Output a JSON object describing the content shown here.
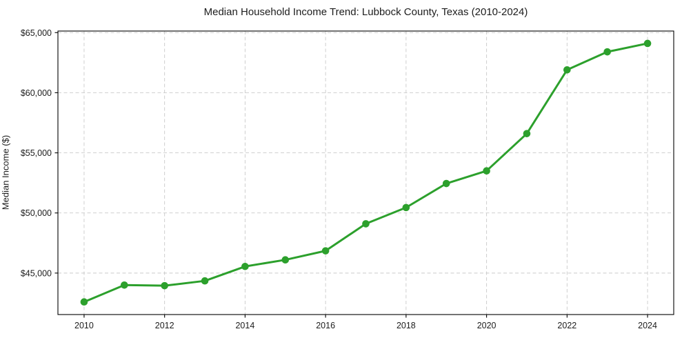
{
  "figure": {
    "title": "Median Household Income Trend: Lubbock County, Texas (2010-2024)"
  },
  "chart_data": {
    "type": "line",
    "title": "Median Household Income Trend: Lubbock County, Texas (2010-2024)",
    "xlabel": "",
    "ylabel": "Median Income ($)",
    "x": [
      2010,
      2011,
      2012,
      2013,
      2014,
      2015,
      2016,
      2017,
      2018,
      2019,
      2020,
      2021,
      2022,
      2023,
      2024
    ],
    "series": [
      {
        "name": "Median household income",
        "values": [
          42600,
          44000,
          43950,
          44350,
          45550,
          46100,
          46850,
          49100,
          50450,
          52450,
          53500,
          56600,
          61900,
          63400,
          64100
        ]
      }
    ],
    "xticks": [
      2010,
      2012,
      2014,
      2016,
      2018,
      2020,
      2022,
      2024
    ],
    "xtick_labels": [
      "2010",
      "2012",
      "2014",
      "2016",
      "2018",
      "2020",
      "2022",
      "2024"
    ],
    "yticks": [
      45000,
      50000,
      55000,
      60000,
      65000
    ],
    "ytick_labels": [
      "$45,000",
      "$50,000",
      "$55,000",
      "$60,000",
      "$65,000"
    ],
    "xlim": [
      2009.35,
      2024.65
    ],
    "ylim": [
      41550,
      65130
    ],
    "grid": "on",
    "grid_style": "dashed",
    "legend": "none",
    "marker": "circle",
    "colors": {
      "line": "#2ca02c",
      "marker": "#2ca02c",
      "grid": "#c9c9c9",
      "spine": "#000000",
      "text": "#1c1c1c",
      "background": "#ffffff"
    }
  }
}
